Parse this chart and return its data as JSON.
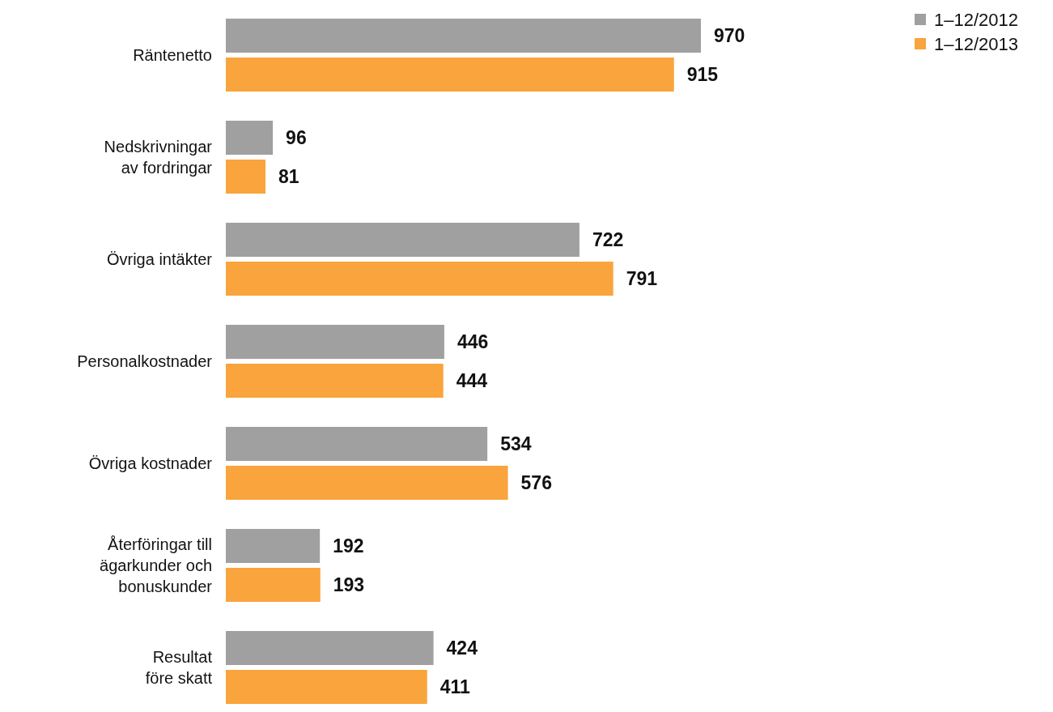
{
  "chart_data": {
    "type": "bar",
    "orientation": "horizontal",
    "categories": [
      "Räntenetto",
      "Nedskrivningar\nav fordringar",
      "Övriga intäkter",
      "Personalkostnader",
      "Övriga kostnader",
      "Återföringar till\nägarkunder och\nbonuskunder",
      "Resultat\nföre skatt"
    ],
    "series": [
      {
        "name": "1–12/2012",
        "color": "#a0a0a0",
        "values": [
          970,
          96,
          722,
          446,
          534,
          192,
          424
        ]
      },
      {
        "name": "1–12/2013",
        "color": "#f9a43c",
        "values": [
          915,
          81,
          791,
          444,
          576,
          193,
          411
        ]
      }
    ],
    "data_labels": true,
    "legend": "top right"
  }
}
